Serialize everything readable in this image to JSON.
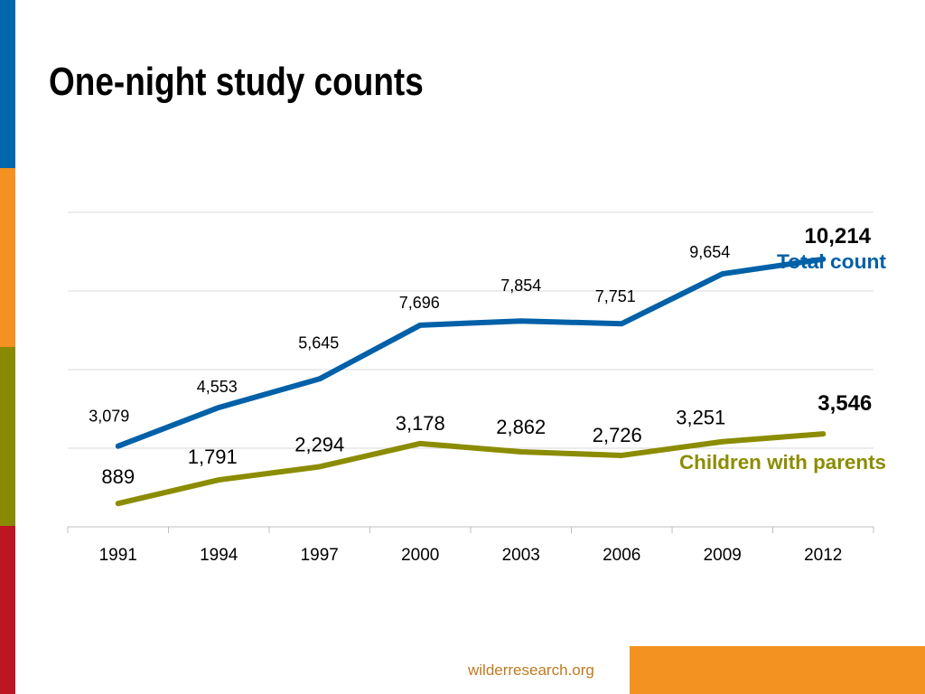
{
  "page": {
    "title": "One-night study counts",
    "footer": "wilderresearch.org"
  },
  "colors": {
    "stripe_blue": "#0067AC",
    "stripe_orange": "#F39220",
    "stripe_olive": "#8A8A00",
    "stripe_red": "#BD1622",
    "total_line": "#0060A8",
    "children_line": "#8C8C00",
    "gridline": "#D9D9D9",
    "footer_text": "#C07A1F",
    "footer_bar": "#F39220"
  },
  "chart_data": {
    "type": "line",
    "title": "",
    "xlabel": "",
    "ylabel": "",
    "ylim": [
      0,
      12000
    ],
    "grid": true,
    "categories": [
      "1991",
      "1994",
      "1997",
      "2000",
      "2003",
      "2006",
      "2009",
      "2012"
    ],
    "series": [
      {
        "name": "Total count",
        "values": [
          3079,
          4553,
          5645,
          7696,
          7854,
          7751,
          9654,
          10214
        ],
        "labels": [
          "3,079",
          "4,553",
          "5,645",
          "7,696",
          "7,854",
          "7,751",
          "9,654",
          "10,214"
        ],
        "color": "#0060A8"
      },
      {
        "name": "Children with parents",
        "values": [
          889,
          1791,
          2294,
          3178,
          2862,
          2726,
          3251,
          3546
        ],
        "labels": [
          "889",
          "1,791",
          "2,294",
          "3,178",
          "2,862",
          "2,726",
          "3,251",
          "3,546"
        ],
        "color": "#8C8C00"
      }
    ]
  }
}
